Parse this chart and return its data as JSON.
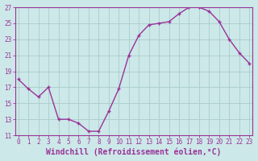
{
  "x": [
    0,
    1,
    2,
    3,
    4,
    5,
    6,
    7,
    8,
    9,
    10,
    11,
    12,
    13,
    14,
    15,
    16,
    17,
    18,
    19,
    20,
    21,
    22,
    23
  ],
  "y": [
    18,
    16.8,
    15.8,
    17,
    13,
    13,
    12.5,
    11.5,
    11.5,
    14,
    16.8,
    21,
    23.5,
    24.8,
    25,
    25.2,
    26.2,
    27,
    27,
    26.5,
    25.2,
    23,
    21.3,
    20
  ],
  "line_color": "#993399",
  "marker": "+",
  "marker_size": 3,
  "marker_lw": 1.0,
  "line_width": 1.0,
  "bg_color": "#cce8e8",
  "grid_color": "#aacccc",
  "xlabel": "Windchill (Refroidissement éolien,°C)",
  "xlabel_fontsize": 7,
  "xlabel_color": "#993399",
  "ylim": [
    11,
    27
  ],
  "xlim": [
    -0.3,
    23.3
  ],
  "yticks": [
    11,
    13,
    15,
    17,
    19,
    21,
    23,
    25,
    27
  ],
  "xticks": [
    0,
    1,
    2,
    3,
    4,
    5,
    6,
    7,
    8,
    9,
    10,
    11,
    12,
    13,
    14,
    15,
    16,
    17,
    18,
    19,
    20,
    21,
    22,
    23
  ],
  "tick_fontsize": 5.5,
  "tick_color": "#993399",
  "spine_color": "#993399"
}
